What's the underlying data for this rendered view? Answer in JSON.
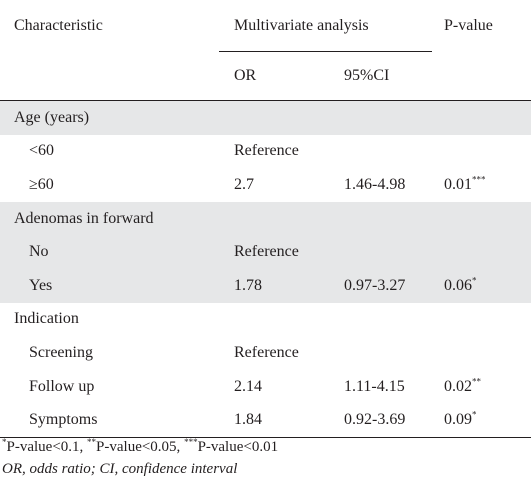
{
  "header": {
    "characteristic": "Characteristic",
    "multivariate": "Multivariate analysis",
    "pvalue": "P-value",
    "or": "OR",
    "ci": "95%CI"
  },
  "rows": [
    {
      "label": "Age (years)",
      "or": "",
      "ci": "",
      "p": "",
      "sup": "",
      "group": true,
      "shaded": true
    },
    {
      "label": "<60",
      "or": "Reference",
      "ci": "",
      "p": "",
      "sup": "",
      "group": false,
      "shaded": false
    },
    {
      "label": "≥60",
      "or": "2.7",
      "ci": "1.46-4.98",
      "p": "0.01",
      "sup": "***",
      "group": false,
      "shaded": false
    },
    {
      "label": "Adenomas in forward",
      "or": "",
      "ci": "",
      "p": "",
      "sup": "",
      "group": true,
      "shaded": true
    },
    {
      "label": "No",
      "or": "Reference",
      "ci": "",
      "p": "",
      "sup": "",
      "group": false,
      "shaded": true
    },
    {
      "label": "Yes",
      "or": "1.78",
      "ci": "0.97-3.27",
      "p": "0.06",
      "sup": "*",
      "group": false,
      "shaded": true
    },
    {
      "label": "Indication",
      "or": "",
      "ci": "",
      "p": "",
      "sup": "",
      "group": true,
      "shaded": false
    },
    {
      "label": "Screening",
      "or": "Reference",
      "ci": "",
      "p": "",
      "sup": "",
      "group": false,
      "shaded": false
    },
    {
      "label": "Follow up",
      "or": "2.14",
      "ci": "1.11-4.15",
      "p": "0.02",
      "sup": "**",
      "group": false,
      "shaded": false
    },
    {
      "label": "Symptoms",
      "or": "1.84",
      "ci": "0.92-3.69",
      "p": "0.09",
      "sup": "*",
      "group": false,
      "shaded": false
    }
  ],
  "footnotes": {
    "sig1_mark": "*",
    "sig1_text": "P-value<0.1, ",
    "sig2_mark": "**",
    "sig2_text": "P-value<0.05, ",
    "sig3_mark": "***",
    "sig3_text": "P-value<0.01",
    "abbrev": "OR, odds ratio; CI, confidence interval"
  }
}
